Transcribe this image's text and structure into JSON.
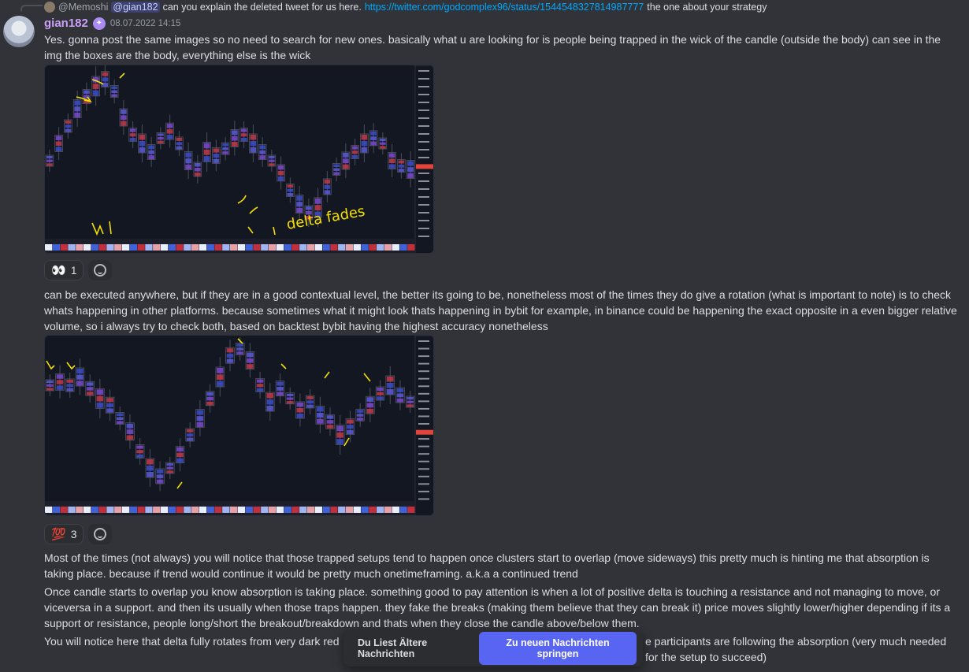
{
  "reply": {
    "author": "@Memoshi",
    "mention": "@gian182",
    "text": "can you explain the deleted tweet for us here.",
    "link": "https://twitter.com/godcomplex96/status/1544548327814987777",
    "tail": "the one about your strategy"
  },
  "message": {
    "username": "gian182",
    "timestamp": "08.07.2022 14:15",
    "para1": "Yes. gonna post the same images so no need to search for new ones. basically what u are looking for is people being trapped in the wick of the candle (outside the body) can see in the img the boxes are the body, everything else is the wick",
    "para2": "can be executed anywhere, but if they are in a good contextual level, the better its going to be, nonetheless most of the times they do give a rotation (what is important to note) is to check whats happening in other platforms. because sometimes what it might look thats happening in bybit for example, in binance could be happening the exact opposite in a even bigger relative volume, so i always try to check both, based on backtest bybit having the highest accuracy nonetheless",
    "para3": "Most of the times (not always) you will notice that those trapped setups tend to happen once clusters start to overlap (move sideways) this pretty much is hinting me that absorption is taking place. because if trend would continue it would be pretty much onetimeframing. a.k.a a continued trend",
    "para4": "Once candle starts to overlap you know absorption is taking place. something good to pay attention is when a lot of positive delta is touching a resistance and not managing to move, or viceversa in a support. and then its usually when those traps happen. they fake the breaks (making them believe that they can break it) price moves slightly lower/higher depending if its a support or resistance, people long/short the breakout/breakdown and thats when they close the candle above/below them.",
    "para5": "You will notice here that delta fully rotates from very dark red",
    "para5_tail": "e participants are following the absorption (very much needed for the setup to succeed)"
  },
  "chart1": {
    "annotation": "delta fades"
  },
  "reactions1": [
    {
      "emoji": "eyes-emoji",
      "glyph": "👀",
      "count": "1"
    }
  ],
  "reactions2": [
    {
      "emoji": "hundred-emoji",
      "glyph": "💯",
      "count": "3"
    }
  ],
  "jump": {
    "older_label": "Du Liest Ältere Nachrichten",
    "button_label": "Zu neuen Nachrichten springen"
  },
  "colors": {
    "accent": "#5865f2",
    "username": "#c9a1f6",
    "link": "#00a8fc",
    "chart_bg": "#131722",
    "annotation": "#f5e000"
  }
}
